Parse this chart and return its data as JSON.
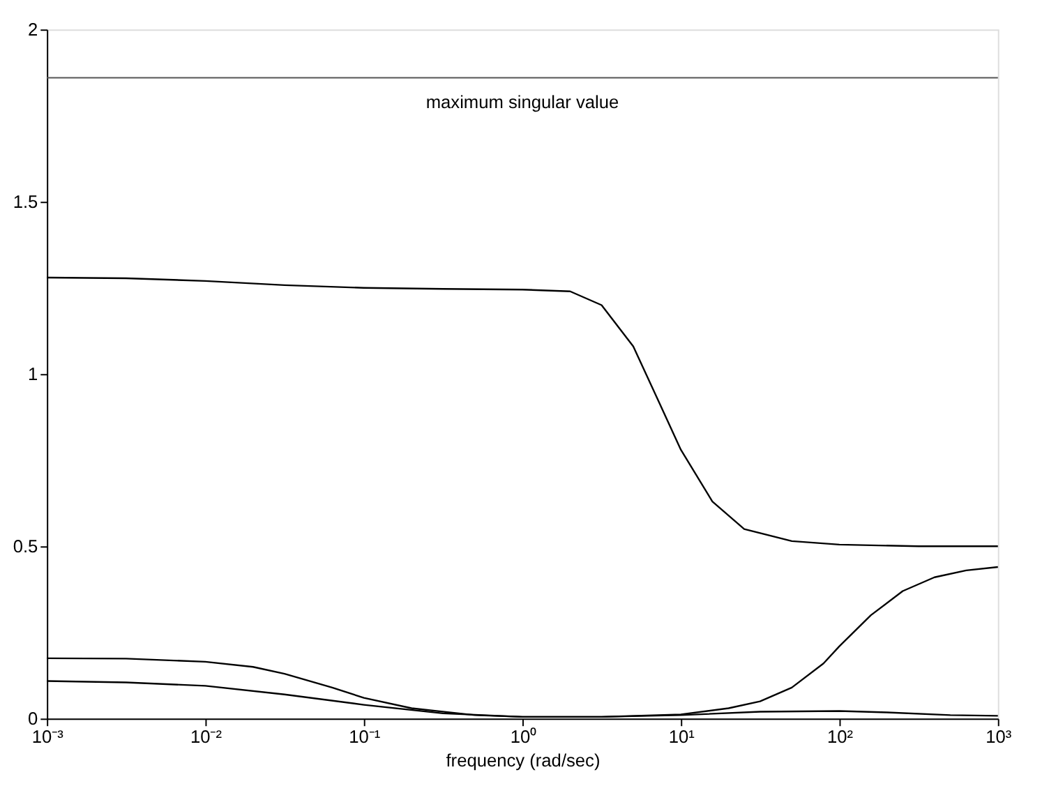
{
  "chart_data": {
    "type": "line",
    "xlabel": "frequency (rad/sec)",
    "log": "x",
    "grid": false,
    "marker": "none",
    "line_style": "solid",
    "xlim": [
      0.001,
      1000
    ],
    "xticks": [
      {
        "value": 0.001,
        "label": "10⁻³"
      },
      {
        "value": 0.01,
        "label": "10⁻²"
      },
      {
        "value": 0.1,
        "label": "10⁻¹"
      },
      {
        "value": 1,
        "label": "10⁰"
      },
      {
        "value": 10,
        "label": "10¹"
      },
      {
        "value": 100,
        "label": "10²"
      },
      {
        "value": 1000,
        "label": "10³"
      }
    ],
    "ylim": [
      0,
      2
    ],
    "yticks": [
      0,
      0.5,
      1,
      1.5,
      2
    ],
    "series": [
      {
        "color": "#000000",
        "x": [
          0.001,
          0.00316,
          0.01,
          0.0316,
          0.1,
          0.316,
          1,
          2,
          3.16,
          5.01,
          7.08,
          10,
          15.8,
          25.1,
          50.1,
          100,
          316,
          1000
        ],
        "values": [
          1.28,
          1.278,
          1.27,
          1.258,
          1.25,
          1.247,
          1.245,
          1.24,
          1.2,
          1.08,
          0.93,
          0.78,
          0.63,
          0.55,
          0.515,
          0.505,
          0.5,
          0.5
        ]
      },
      {
        "color": "#000000",
        "x": [
          0.001,
          0.00316,
          0.01,
          0.02,
          0.0316,
          0.0631,
          0.1,
          0.2,
          0.501,
          1,
          3.16,
          10,
          31.6,
          100,
          200,
          501,
          1000
        ],
        "values": [
          0.175,
          0.174,
          0.165,
          0.15,
          0.13,
          0.09,
          0.06,
          0.03,
          0.01,
          0.005,
          0.005,
          0.01,
          0.02,
          0.022,
          0.018,
          0.01,
          0.008
        ]
      },
      {
        "color": "#000000",
        "x": [
          0.001,
          0.00316,
          0.01,
          0.0316,
          0.1,
          0.316,
          1,
          3.16,
          10,
          20,
          31.6,
          50.1,
          79.4,
          100,
          158,
          251,
          398,
          631,
          1000
        ],
        "values": [
          0.109,
          0.105,
          0.095,
          0.07,
          0.04,
          0.015,
          0.005,
          0.005,
          0.012,
          0.03,
          0.05,
          0.09,
          0.16,
          0.21,
          0.3,
          0.37,
          0.41,
          0.43,
          0.44
        ]
      }
    ],
    "ref_lines": [
      {
        "axis": "y",
        "value": 1.86,
        "label": "maximum singular value",
        "color": "#555555",
        "line_style": "solid"
      }
    ]
  }
}
